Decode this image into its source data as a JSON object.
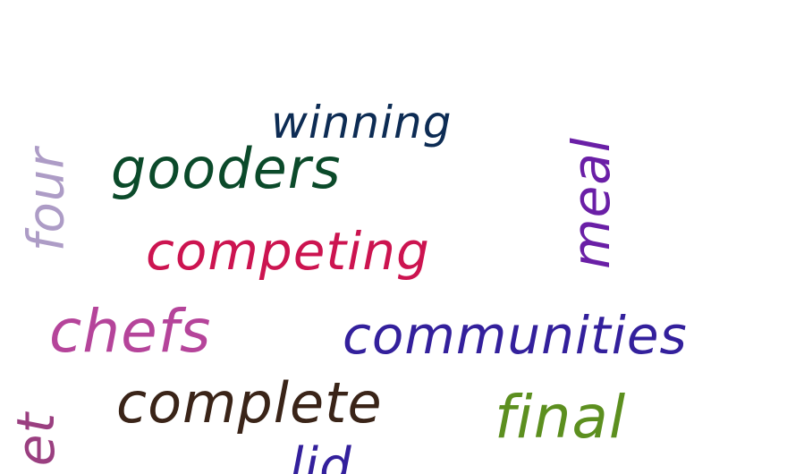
{
  "words": [
    {
      "text": "winning",
      "color": "#0d2c54"
    },
    {
      "text": "gooders",
      "color": "#0b4a2a"
    },
    {
      "text": "four",
      "color": "#ad9cc6"
    },
    {
      "text": "meal",
      "color": "#6a1fa6"
    },
    {
      "text": "competing",
      "color": "#cc1450"
    },
    {
      "text": "chefs",
      "color": "#b5449a"
    },
    {
      "text": "communities",
      "color": "#33209c"
    },
    {
      "text": "complete",
      "color": "#3a2418"
    },
    {
      "text": "final",
      "color": "#5c8f1f"
    },
    {
      "text": "et",
      "color": "#9a3f80"
    },
    {
      "text": "lid",
      "color": "#33209c"
    }
  ]
}
